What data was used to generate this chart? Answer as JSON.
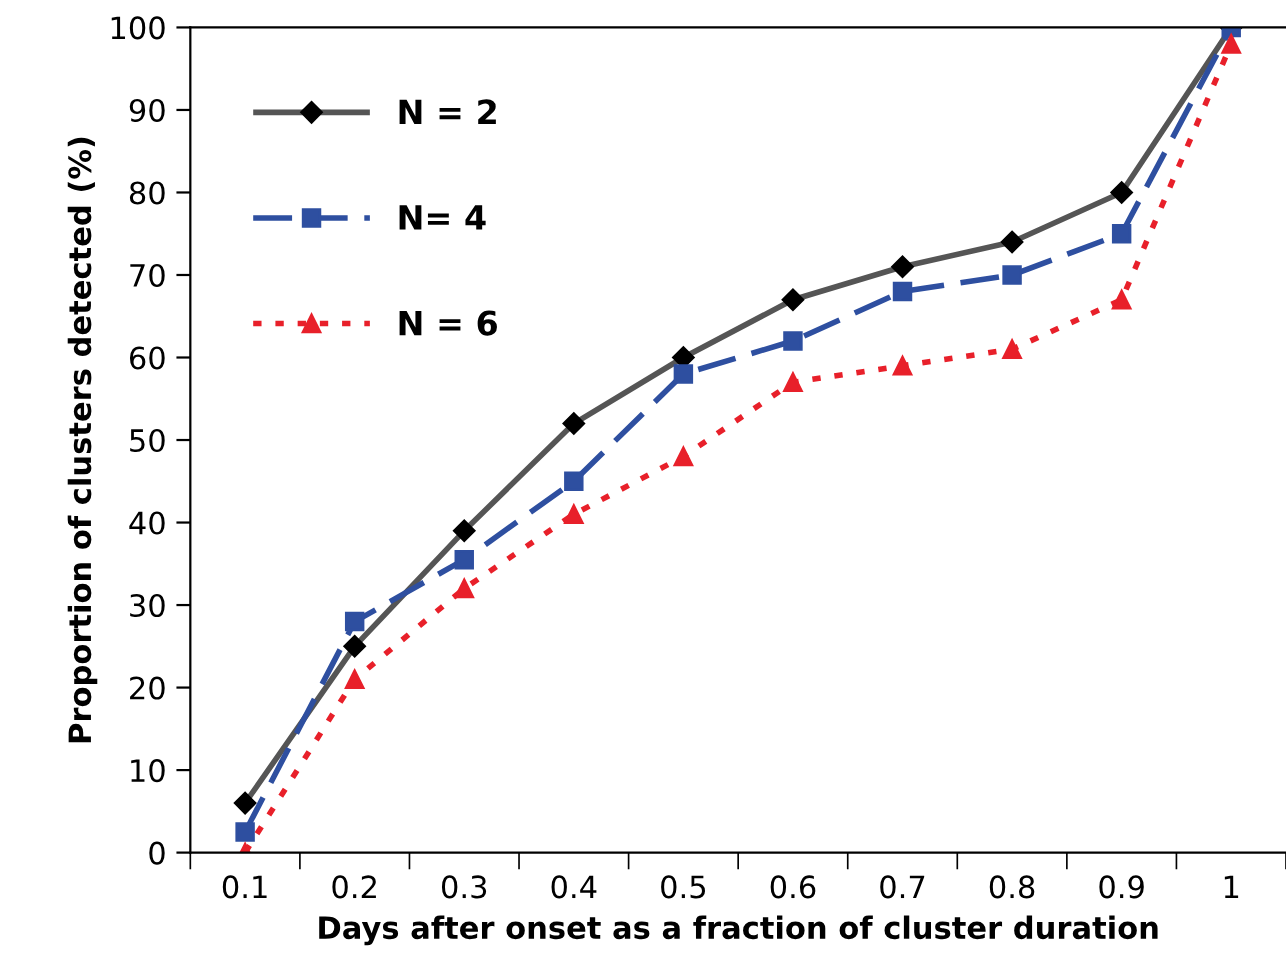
{
  "chart_data": {
    "type": "line",
    "xlabel": "Days after onset as a fraction of cluster duration",
    "ylabel": "Proportion of clusters detected (%)",
    "categories": [
      "0.1",
      "0.2",
      "0.3",
      "0.4",
      "0.5",
      "0.6",
      "0.7",
      "0.8",
      "0.9",
      "1"
    ],
    "series": [
      {
        "name": "N = 2",
        "color": "#555555",
        "marker": "diamond",
        "line_style": "solid",
        "values": [
          6,
          25,
          39,
          52,
          60,
          67,
          71,
          74,
          80,
          100
        ]
      },
      {
        "name": "N= 4",
        "color": "#2e4fa0",
        "marker": "square",
        "line_style": "dashed",
        "values": [
          2.5,
          28,
          35.5,
          45,
          58,
          62,
          68,
          70,
          75,
          100
        ]
      },
      {
        "name": "N = 6",
        "color": "#e8202a",
        "marker": "triangle",
        "line_style": "dotted",
        "values": [
          0,
          21,
          32,
          41,
          48,
          57,
          59,
          61,
          67,
          98
        ]
      }
    ],
    "ylim": [
      0,
      100
    ],
    "yticks": [
      0,
      10,
      20,
      30,
      40,
      50,
      60,
      70,
      80,
      90,
      100
    ],
    "grid": false,
    "legend": "top left"
  }
}
